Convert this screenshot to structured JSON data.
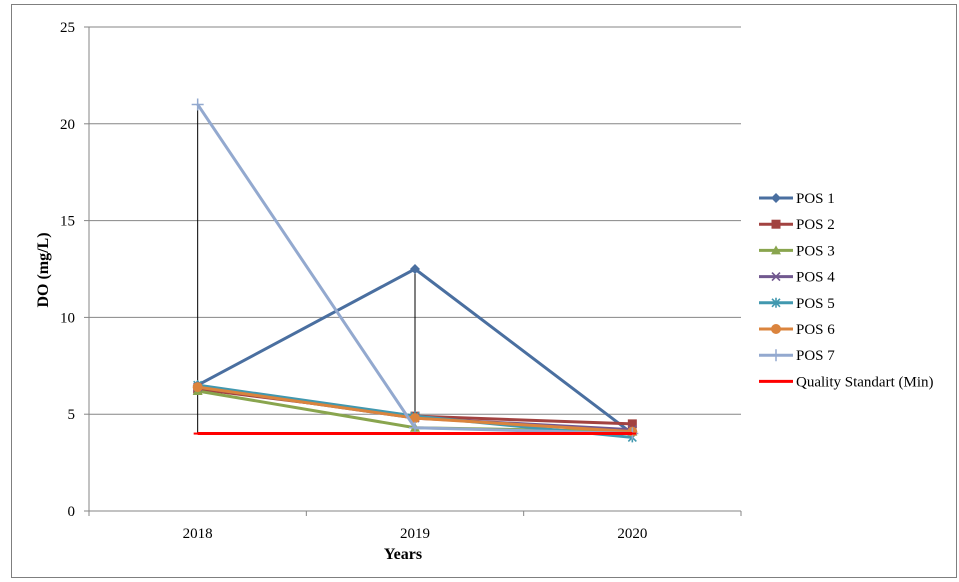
{
  "chart_data": {
    "type": "line",
    "title": "",
    "xlabel": "Years",
    "ylabel": "DO (mg/L)",
    "categories": [
      "2018",
      "2019",
      "2020"
    ],
    "ylim": [
      0,
      25
    ],
    "yticks": [
      0,
      5,
      10,
      15,
      20,
      25
    ],
    "grid": true,
    "legend": "right",
    "high_low_lines": true,
    "series": [
      {
        "name": "POS 1",
        "values": [
          6.5,
          12.5,
          4.0
        ],
        "color": "#4a6fa0",
        "marker": "diamond"
      },
      {
        "name": "POS 2",
        "values": [
          6.3,
          4.9,
          4.5
        ],
        "color": "#a24240",
        "marker": "square"
      },
      {
        "name": "POS 3",
        "values": [
          6.2,
          4.3,
          4.1
        ],
        "color": "#89a54e",
        "marker": "triangle"
      },
      {
        "name": "POS 4",
        "values": [
          6.4,
          4.8,
          4.2
        ],
        "color": "#71588f",
        "marker": "x"
      },
      {
        "name": "POS 5",
        "values": [
          6.5,
          4.9,
          3.8
        ],
        "color": "#4198af",
        "marker": "star"
      },
      {
        "name": "POS 6",
        "values": [
          6.4,
          4.8,
          4.1
        ],
        "color": "#db843d",
        "marker": "circle"
      },
      {
        "name": "POS 7",
        "values": [
          21.0,
          4.3,
          4.0
        ],
        "color": "#93a9cf",
        "marker": "plus"
      },
      {
        "name": "Quality Standart (Min)",
        "values": [
          4,
          4,
          4
        ],
        "color": "#ff0000",
        "marker": "dash"
      }
    ]
  }
}
